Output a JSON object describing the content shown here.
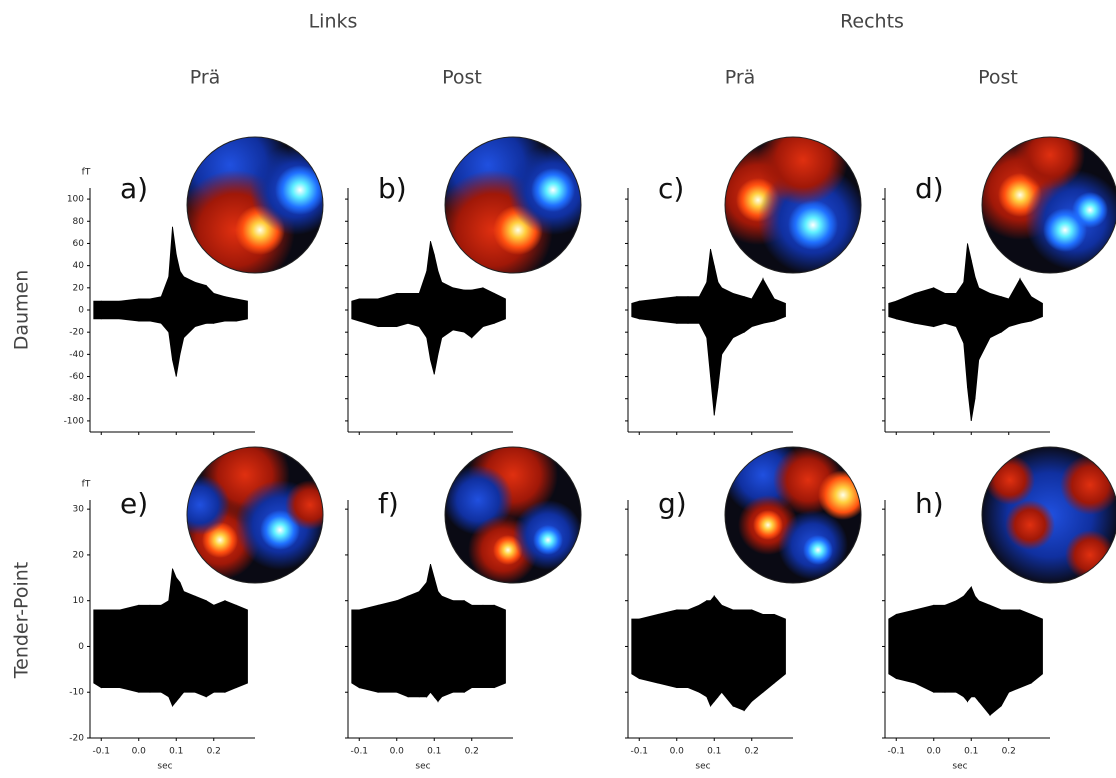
{
  "headers": {
    "groups": [
      "Links",
      "Rechts"
    ],
    "conditions": [
      "Prä",
      "Post",
      "Prä",
      "Post"
    ],
    "rows": [
      "Daumen",
      "Tender-Point"
    ]
  },
  "chart_data": [
    {
      "type": "band",
      "label": "a)",
      "ylabel": "fT",
      "ytick_labels": true,
      "xtick_labels": false,
      "x": [
        -0.12,
        -0.1,
        -0.05,
        0,
        0.03,
        0.06,
        0.08,
        0.09,
        0.1,
        0.11,
        0.12,
        0.15,
        0.18,
        0.2,
        0.23,
        0.26,
        0.29
      ],
      "upper": [
        8,
        8,
        8,
        10,
        10,
        12,
        30,
        75,
        50,
        35,
        30,
        25,
        22,
        15,
        12,
        10,
        8
      ],
      "lower": [
        -8,
        -8,
        -8,
        -10,
        -10,
        -12,
        -20,
        -45,
        -60,
        -40,
        -25,
        -15,
        -12,
        -12,
        -10,
        -10,
        -8
      ],
      "xlim": [
        -0.13,
        0.31
      ],
      "ylim": [
        -110,
        110
      ],
      "xticks": [
        -0.1,
        {
          "value": 0,
          "label": "0.0"
        },
        0.1,
        0.2
      ],
      "yticks": [
        100,
        80,
        60,
        40,
        20,
        0,
        -20,
        -40,
        -60,
        -80,
        -100
      ]
    },
    {
      "type": "band",
      "label": "b)",
      "ytick_labels": false,
      "xtick_labels": false,
      "x": [
        -0.12,
        -0.1,
        -0.05,
        0,
        0.03,
        0.06,
        0.08,
        0.09,
        0.1,
        0.11,
        0.12,
        0.15,
        0.18,
        0.2,
        0.23,
        0.26,
        0.29
      ],
      "upper": [
        8,
        10,
        10,
        15,
        15,
        15,
        35,
        62,
        50,
        35,
        25,
        20,
        18,
        18,
        20,
        15,
        10
      ],
      "lower": [
        -8,
        -10,
        -15,
        -15,
        -12,
        -15,
        -25,
        -45,
        -58,
        -40,
        -25,
        -18,
        -20,
        -25,
        -15,
        -12,
        -8
      ],
      "xlim": [
        -0.13,
        0.31
      ],
      "ylim": [
        -110,
        110
      ],
      "xticks": [
        -0.1,
        {
          "value": 0,
          "label": "0.0"
        },
        0.1,
        0.2
      ],
      "yticks": [
        100,
        80,
        60,
        40,
        20,
        0,
        -20,
        -40,
        -60,
        -80,
        -100
      ]
    },
    {
      "type": "band",
      "label": "c)",
      "ytick_labels": false,
      "xtick_labels": false,
      "x": [
        -0.12,
        -0.1,
        -0.05,
        0,
        0.03,
        0.06,
        0.08,
        0.09,
        0.1,
        0.11,
        0.12,
        0.15,
        0.18,
        0.2,
        0.23,
        0.26,
        0.29
      ],
      "upper": [
        6,
        8,
        10,
        12,
        12,
        12,
        25,
        55,
        40,
        25,
        20,
        15,
        12,
        10,
        28,
        10,
        6
      ],
      "lower": [
        -6,
        -8,
        -10,
        -12,
        -12,
        -12,
        -25,
        -60,
        -95,
        -70,
        -40,
        -25,
        -20,
        -15,
        -12,
        -10,
        -6
      ],
      "xlim": [
        -0.13,
        0.31
      ],
      "ylim": [
        -110,
        110
      ],
      "xticks": [
        -0.1,
        {
          "value": 0,
          "label": "0.0"
        },
        0.1,
        0.2
      ],
      "yticks": [
        100,
        80,
        60,
        40,
        20,
        0,
        -20,
        -40,
        -60,
        -80,
        -100
      ]
    },
    {
      "type": "band",
      "label": "d)",
      "ytick_labels": false,
      "xtick_labels": false,
      "x": [
        -0.12,
        -0.1,
        -0.05,
        0,
        0.03,
        0.06,
        0.08,
        0.09,
        0.1,
        0.11,
        0.12,
        0.15,
        0.18,
        0.2,
        0.23,
        0.26,
        0.29
      ],
      "upper": [
        6,
        8,
        15,
        20,
        15,
        15,
        25,
        60,
        45,
        30,
        20,
        15,
        12,
        10,
        28,
        12,
        6
      ],
      "lower": [
        -6,
        -8,
        -12,
        -15,
        -12,
        -15,
        -30,
        -70,
        -100,
        -80,
        -45,
        -25,
        -20,
        -15,
        -12,
        -10,
        -6
      ],
      "xlim": [
        -0.13,
        0.31
      ],
      "ylim": [
        -110,
        110
      ],
      "xticks": [
        -0.1,
        {
          "value": 0,
          "label": "0.0"
        },
        0.1,
        0.2
      ],
      "yticks": [
        100,
        80,
        60,
        40,
        20,
        0,
        -20,
        -40,
        -60,
        -80,
        -100
      ]
    },
    {
      "type": "band",
      "label": "e)",
      "ylabel": "fT",
      "xlabel": "sec",
      "ytick_labels": true,
      "xtick_labels": true,
      "x": [
        -0.12,
        -0.1,
        -0.05,
        0,
        0.03,
        0.06,
        0.08,
        0.09,
        0.1,
        0.11,
        0.12,
        0.15,
        0.18,
        0.2,
        0.23,
        0.26,
        0.29
      ],
      "upper": [
        8,
        8,
        8,
        9,
        9,
        9,
        10,
        17,
        15,
        14,
        12,
        11,
        10,
        9,
        10,
        9,
        8
      ],
      "lower": [
        -8,
        -9,
        -9,
        -10,
        -10,
        -10,
        -11,
        -13,
        -12,
        -11,
        -10,
        -10,
        -11,
        -10,
        -10,
        -9,
        -8
      ],
      "xlim": [
        -0.13,
        0.31
      ],
      "ylim": [
        -20,
        32
      ],
      "xticks": [
        -0.1,
        {
          "value": 0,
          "label": "0.0"
        },
        0.1,
        0.2
      ],
      "yticks": [
        30,
        20,
        10,
        0,
        -10,
        -20
      ]
    },
    {
      "type": "band",
      "label": "f)",
      "xlabel": "sec",
      "ytick_labels": false,
      "xtick_labels": true,
      "x": [
        -0.12,
        -0.1,
        -0.05,
        0,
        0.03,
        0.06,
        0.08,
        0.09,
        0.1,
        0.11,
        0.12,
        0.15,
        0.18,
        0.2,
        0.23,
        0.26,
        0.29
      ],
      "upper": [
        8,
        8,
        9,
        10,
        11,
        12,
        14,
        18,
        15,
        12,
        11,
        10,
        10,
        9,
        9,
        9,
        8
      ],
      "lower": [
        -8,
        -9,
        -10,
        -10,
        -11,
        -11,
        -11,
        -10,
        -11,
        -12,
        -11,
        -10,
        -10,
        -9,
        -9,
        -9,
        -8
      ],
      "xlim": [
        -0.13,
        0.31
      ],
      "ylim": [
        -20,
        32
      ],
      "xticks": [
        -0.1,
        {
          "value": 0,
          "label": "0.0"
        },
        0.1,
        0.2
      ],
      "yticks": [
        30,
        20,
        10,
        0,
        -10,
        -20
      ]
    },
    {
      "type": "band",
      "label": "g)",
      "xlabel": "sec",
      "ytick_labels": false,
      "xtick_labels": true,
      "x": [
        -0.12,
        -0.1,
        -0.05,
        0,
        0.03,
        0.06,
        0.08,
        0.09,
        0.1,
        0.11,
        0.12,
        0.15,
        0.18,
        0.2,
        0.23,
        0.26,
        0.29
      ],
      "upper": [
        6,
        6,
        7,
        8,
        8,
        9,
        10,
        10,
        11,
        10,
        9,
        8,
        8,
        8,
        7,
        7,
        6
      ],
      "lower": [
        -6,
        -7,
        -8,
        -9,
        -9,
        -10,
        -11,
        -13,
        -12,
        -11,
        -10,
        -13,
        -14,
        -12,
        -10,
        -8,
        -6
      ],
      "xlim": [
        -0.13,
        0.31
      ],
      "ylim": [
        -20,
        32
      ],
      "xticks": [
        -0.1,
        {
          "value": 0,
          "label": "0.0"
        },
        0.1,
        0.2
      ],
      "yticks": [
        30,
        20,
        10,
        0,
        -10,
        -20
      ]
    },
    {
      "type": "band",
      "label": "h)",
      "xlabel": "sec",
      "ytick_labels": false,
      "xtick_labels": true,
      "x": [
        -0.12,
        -0.1,
        -0.05,
        0,
        0.03,
        0.06,
        0.08,
        0.09,
        0.1,
        0.11,
        0.12,
        0.15,
        0.18,
        0.2,
        0.23,
        0.26,
        0.29
      ],
      "upper": [
        6,
        7,
        8,
        9,
        9,
        10,
        11,
        12,
        13,
        11,
        10,
        9,
        8,
        8,
        8,
        7,
        6
      ],
      "lower": [
        -6,
        -7,
        -8,
        -10,
        -10,
        -10,
        -11,
        -12,
        -11,
        -11,
        -12,
        -15,
        -13,
        -10,
        -9,
        -8,
        -6
      ],
      "xlim": [
        -0.13,
        0.31
      ],
      "ylim": [
        -20,
        32
      ],
      "xticks": [
        -0.1,
        {
          "value": 0,
          "label": "0.0"
        },
        0.1,
        0.2
      ],
      "yticks": [
        30,
        20,
        10,
        0,
        -10,
        -20
      ]
    }
  ]
}
